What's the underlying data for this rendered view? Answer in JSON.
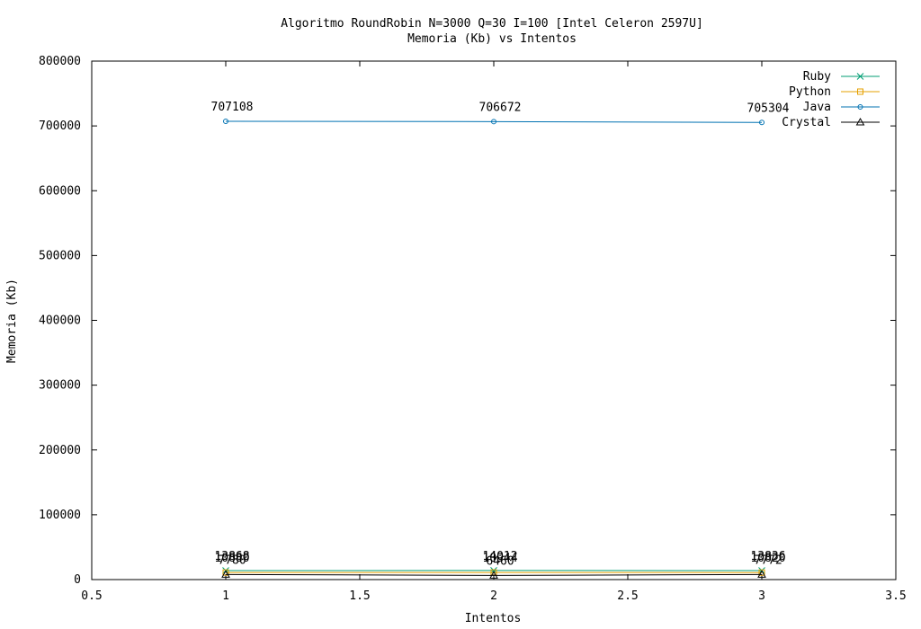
{
  "chart_data": {
    "type": "line",
    "title": "Algoritmo RoundRobin N=3000 Q=30 I=100 [Intel Celeron 2597U]",
    "subtitle": "Memoria (Kb) vs Intentos",
    "xlabel": "Intentos",
    "ylabel": "Memoria (Kb)",
    "xlim": [
      0.5,
      3.5
    ],
    "ylim": [
      0,
      800000
    ],
    "xticks": [
      "0.5",
      "1",
      "1.5",
      "2",
      "2.5",
      "3",
      "3.5"
    ],
    "yticks": [
      "0",
      "100000",
      "200000",
      "300000",
      "400000",
      "500000",
      "600000",
      "700000",
      "800000"
    ],
    "grid": false,
    "legend": "top-right",
    "x": [
      1,
      2,
      3
    ],
    "series": [
      {
        "name": "Ruby",
        "values": [
          13868,
          14012,
          13836
        ],
        "color": "#009e73",
        "marker": "x"
      },
      {
        "name": "Python",
        "values": [
          10880,
          10944,
          10820
        ],
        "color": "#e6a000",
        "marker": "square"
      },
      {
        "name": "Java",
        "values": [
          707108,
          706672,
          705304
        ],
        "color": "#0072b2",
        "marker": "circle"
      },
      {
        "name": "Crystal",
        "values": [
          7780,
          6460,
          7772
        ],
        "color": "#000000",
        "marker": "triangle"
      }
    ]
  }
}
